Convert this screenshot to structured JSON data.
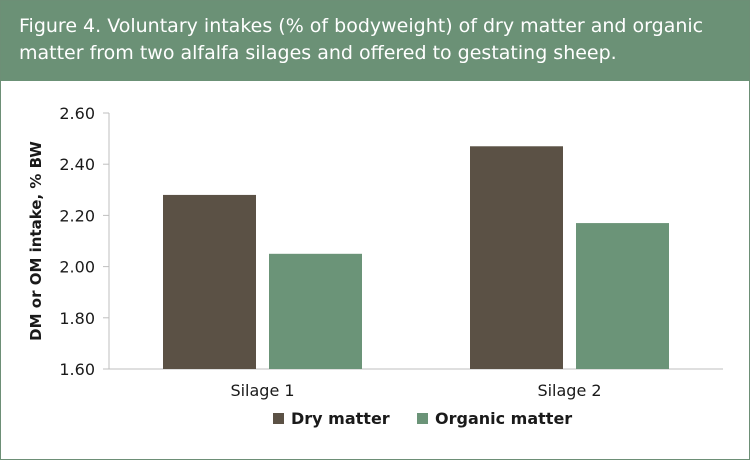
{
  "header": {
    "title": "Figure 4. Voluntary intakes (% of bodyweight) of dry matter and organic\nmatter from two alfalfa silages and offered to gestating sheep."
  },
  "colors": {
    "header_bg": "#6b9176",
    "dry_matter": "#5b5145",
    "organic_matter": "#6b9478",
    "axis": "#bfbfbf"
  },
  "chart_data": {
    "type": "bar",
    "title": "Figure 4. Voluntary intakes (% of bodyweight) of dry matter and organic matter from two alfalfa silages and offered to gestating sheep.",
    "ylabel": "DM or OM intake, % BW",
    "xlabel": "",
    "categories": [
      "Silage 1",
      "Silage 2"
    ],
    "series": [
      {
        "name": "Dry matter",
        "values": [
          2.28,
          2.47
        ],
        "color": "#5b5145"
      },
      {
        "name": "Organic matter",
        "values": [
          2.05,
          2.17
        ],
        "color": "#6b9478"
      }
    ],
    "ylim": [
      1.6,
      2.6
    ],
    "yticks": [
      "1.60",
      "1.80",
      "2.00",
      "2.20",
      "2.40",
      "2.60"
    ],
    "grid": false,
    "legend": "bottom-center"
  }
}
